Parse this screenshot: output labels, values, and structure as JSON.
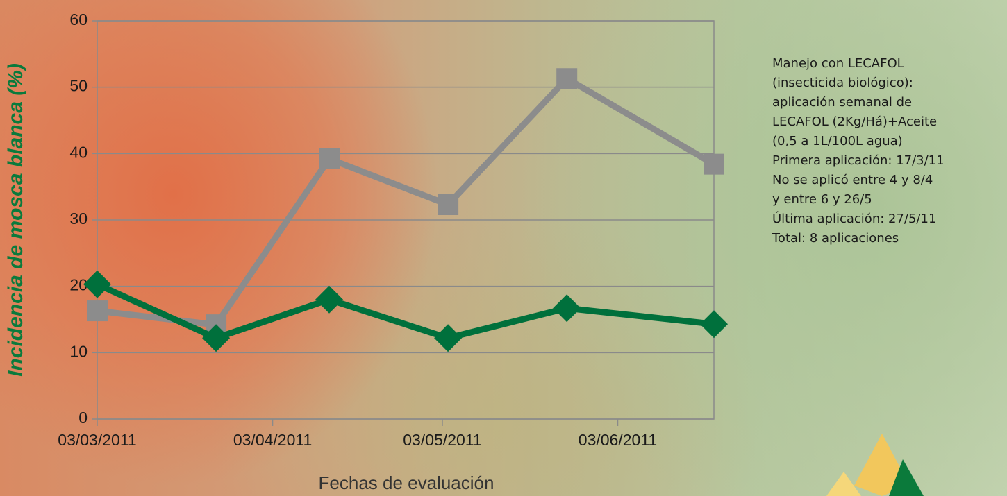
{
  "chart_data": {
    "type": "line",
    "y_label": "Incidencia de mosca blanca (%)",
    "x_label": "Fechas de evaluación",
    "x": [
      "03/03/2011",
      "24/03/2011",
      "13/04/2011",
      "04/05/2011",
      "25/05/2011",
      "20/06/2011"
    ],
    "series": [
      {
        "color": "#8c8c8c",
        "marker": "square",
        "values": [
          16.3,
          14.2,
          39.2,
          32.3,
          51.3,
          38.4
        ]
      },
      {
        "color": "#00703c",
        "marker": "diamond",
        "values": [
          20.3,
          12.2,
          18.0,
          12.2,
          16.7,
          14.3
        ]
      }
    ],
    "xlim": [
      "03/03/2011",
      "20/06/2011"
    ],
    "xticks": [
      "03/03/2011",
      "03/04/2011",
      "03/05/2011",
      "03/06/2011"
    ],
    "ylim": [
      0,
      60
    ],
    "yticks": [
      0,
      10,
      20,
      30,
      40,
      50,
      60
    ],
    "grid": true,
    "annotation": [
      "Manejo con LECAFOL",
      "(insecticida biológico):",
      "aplicación semanal de",
      "LECAFOL (2Kg/Há)+Aceite",
      "(0,5 a 1L/100L agua)",
      "Primera aplicación: 17/3/11",
      "No se aplicó entre 4 y 8/4",
      "y entre 6 y 26/5",
      "Última aplicación: 27/5/11",
      "Total: 8 aplicaciones"
    ]
  }
}
